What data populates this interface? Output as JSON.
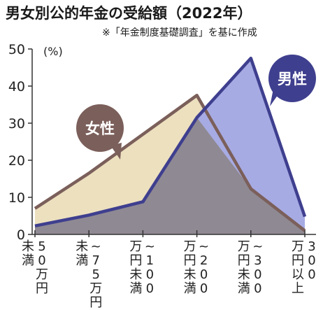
{
  "title": "男女別公的年金の受給額（2022年）",
  "subtitle": "※「年金制度基礎調査」を基に作成",
  "colors": {
    "female_line": "#7b5f5a",
    "female_fill": "#ece0bf",
    "male_line": "#3f3f8f",
    "male_fill": "#a7abe3",
    "overlap_fill": "#8f8993",
    "axis": "#333333"
  },
  "chart_data": {
    "type": "area",
    "title": "男女別公的年金の受給額（2022年）",
    "ylabel": "(%)",
    "ylim": [
      0,
      50
    ],
    "yticks": [
      0,
      10,
      20,
      30,
      40,
      50
    ],
    "categories": [
      "50万円未満",
      "50万円~75万円未満",
      "75万円~100万円未満",
      "100万円~200万円未満",
      "200万円~300万円未満",
      "300万円以上"
    ],
    "tick_labels": [
      {
        "cols": [
          "50万円",
          "未満"
        ]
      },
      {
        "cols": [
          "~75万円",
          "未満"
        ]
      },
      {
        "cols": [
          "~100",
          "万円未満"
        ]
      },
      {
        "cols": [
          "~200",
          "万円未満"
        ]
      },
      {
        "cols": [
          "~300",
          "万円未満"
        ]
      },
      {
        "cols": [
          "300",
          "万円以上"
        ]
      }
    ],
    "series": [
      {
        "name": "女性",
        "values": [
          7.0,
          16.5,
          27.0,
          37.5,
          12.3,
          1.0
        ]
      },
      {
        "name": "男性",
        "values": [
          2.3,
          5.2,
          8.8,
          31.5,
          47.5,
          4.8
        ]
      }
    ],
    "grid": false
  }
}
